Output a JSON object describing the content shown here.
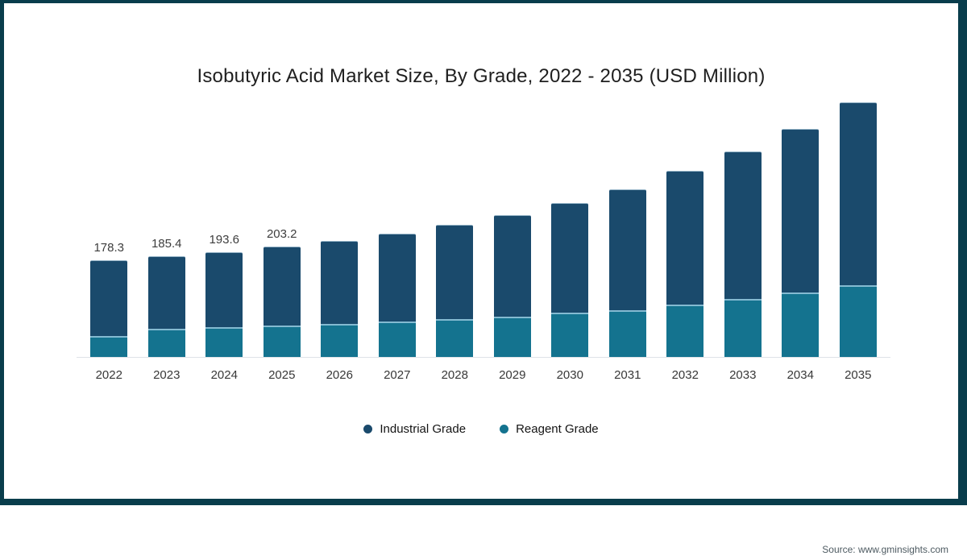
{
  "title": "Isobutyric Acid Market Size, By Grade, 2022 - 2035 (USD Million)",
  "source": "Source: www.gminsights.com",
  "frame": {
    "border_color": "#093d4c"
  },
  "legend": {
    "items": [
      {
        "label": "Industrial Grade",
        "color": "#1a4a6c"
      },
      {
        "label": "Reagent Grade",
        "color": "#14738f"
      }
    ]
  },
  "chart_data": {
    "type": "bar",
    "stacked": true,
    "title": "Isobutyric Acid Market Size, By Grade, 2022 - 2035 (USD Million)",
    "xlabel": "",
    "ylabel": "USD Million",
    "grid": false,
    "legend_position": "bottom",
    "categories": [
      "2022",
      "2023",
      "2024",
      "2025",
      "2026",
      "2027",
      "2028",
      "2029",
      "2030",
      "2031",
      "2032",
      "2033",
      "2034",
      "2035"
    ],
    "series": [
      {
        "name": "Industrial Grade",
        "color": "#1a4a6c",
        "values": [
          138.3,
          132.1,
          137.4,
          144.0,
          151.0,
          159.9,
          171.5,
          184.8,
          199.6,
          220.6,
          244.1,
          269.2,
          298.7,
          334.3
        ]
      },
      {
        "name": "Reagent Grade",
        "color": "#14738f",
        "values": [
          40.0,
          53.3,
          56.2,
          59.2,
          62.2,
          66.6,
          71.0,
          75.5,
          82.9,
          87.3,
          97.7,
          108.0,
          119.9,
          133.2
        ]
      }
    ],
    "totals": [
      178.3,
      185.4,
      193.6,
      203.2,
      213.2,
      226.5,
      242.5,
      260.3,
      282.5,
      307.9,
      341.8,
      377.2,
      418.6,
      467.5
    ],
    "bar_labels": [
      "178.3",
      "185.4",
      "193.6",
      "203.2",
      "",
      "",
      "",
      "",
      "",
      "",
      "",
      "",
      "",
      ""
    ],
    "separator_line_color": "#84bad1",
    "axis_line_color": "#dfe3e8",
    "note": "Totals for 2026-2035 estimated from bar heights; only 2022-2025 carry printed data labels"
  }
}
